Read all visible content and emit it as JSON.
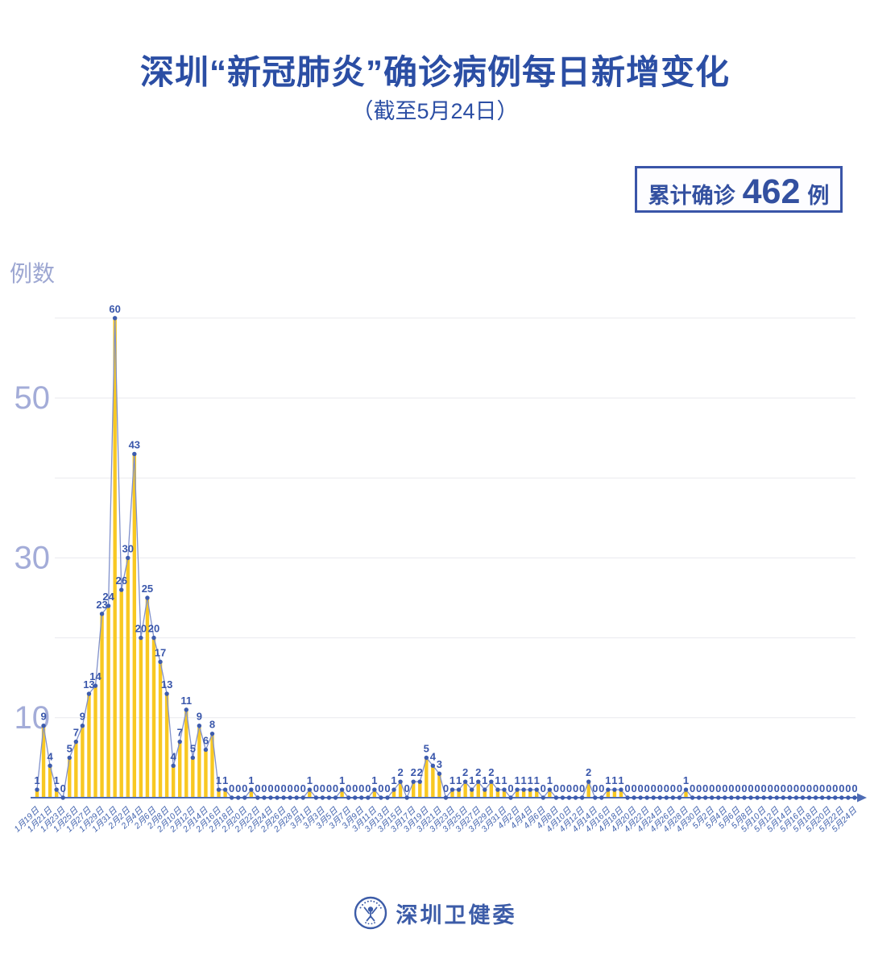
{
  "header": {
    "title": "深圳“新冠肺炎”确诊病例每日新增变化",
    "subtitle": "（截至5月24日）",
    "badge": {
      "prefix": "累计确诊",
      "value": "462",
      "suffix": "例"
    }
  },
  "footer": {
    "brand": "深圳卫健委"
  },
  "chart_data": {
    "type": "bar",
    "title": "深圳“新冠肺炎”确诊病例每日新增变化",
    "subtitle": "截至5月24日",
    "xlabel": "",
    "ylabel": "例数",
    "ylim": [
      0,
      62
    ],
    "grid": true,
    "grid_step": 10,
    "y_ticks_labeled": [
      10,
      30,
      50
    ],
    "point_labels": "each point labeled with its value",
    "legend": "none",
    "tick_every": 2,
    "x_tick_labels": [
      "1月19日",
      "1月21日",
      "1月23日",
      "1月25日",
      "1月27日",
      "1月29日",
      "1月31日",
      "2月2日",
      "2月4日",
      "2月6日",
      "2月8日",
      "2月10日",
      "2月12日",
      "2月14日",
      "2月16日",
      "2月18日",
      "2月20日",
      "2月22日",
      "2月24日",
      "2月26日",
      "2月28日",
      "3月1日",
      "3月3日",
      "3月5日",
      "3月7日",
      "3月9日",
      "3月11日",
      "3月13日",
      "3月15日",
      "3月17日",
      "3月19日",
      "3月21日",
      "3月23日",
      "3月25日",
      "3月27日",
      "3月29日",
      "3月31日",
      "4月2日",
      "4月4日",
      "4月6日",
      "4月8日",
      "4月10日",
      "4月12日",
      "4月14日",
      "4月16日",
      "4月18日",
      "4月20日",
      "4月22日",
      "4月24日",
      "4月26日",
      "4月28日",
      "4月30日",
      "5月2日",
      "5月4日",
      "5月6日",
      "5月8日",
      "5月10日",
      "5月12日",
      "5月14日",
      "5月16日",
      "5月18日",
      "5月20日",
      "5月22日",
      "5月24日"
    ],
    "values": [
      1,
      9,
      4,
      1,
      0,
      5,
      7,
      9,
      13,
      14,
      23,
      24,
      60,
      26,
      30,
      43,
      20,
      25,
      20,
      17,
      13,
      4,
      7,
      11,
      5,
      9,
      6,
      8,
      1,
      1,
      0,
      0,
      0,
      1,
      0,
      0,
      0,
      0,
      0,
      0,
      0,
      0,
      1,
      0,
      0,
      0,
      0,
      1,
      0,
      0,
      0,
      0,
      1,
      0,
      0,
      1,
      2,
      0,
      2,
      2,
      5,
      4,
      3,
      0,
      1,
      1,
      2,
      1,
      2,
      1,
      2,
      1,
      1,
      0,
      1,
      1,
      1,
      1,
      0,
      1,
      0,
      0,
      0,
      0,
      0,
      2,
      0,
      0,
      1,
      1,
      1,
      0,
      0,
      0,
      0,
      0,
      0,
      0,
      0,
      0,
      1,
      0,
      0,
      0,
      0,
      0,
      0,
      0,
      0,
      0,
      0,
      0,
      0,
      0,
      0,
      0,
      0,
      0,
      0,
      0,
      0,
      0,
      0,
      0,
      0,
      0,
      0
    ],
    "colors": {
      "bar": "#F8C822",
      "line": "#8191CB",
      "dot": "#3D5CAE",
      "value_label": "#3A57AB",
      "axis": "#4E6CB5",
      "grid": "#EAEAEE",
      "y_tick_text": "#A3ACD8",
      "x_tick_text": "#4263AE",
      "title": "#2B4EA4"
    }
  }
}
